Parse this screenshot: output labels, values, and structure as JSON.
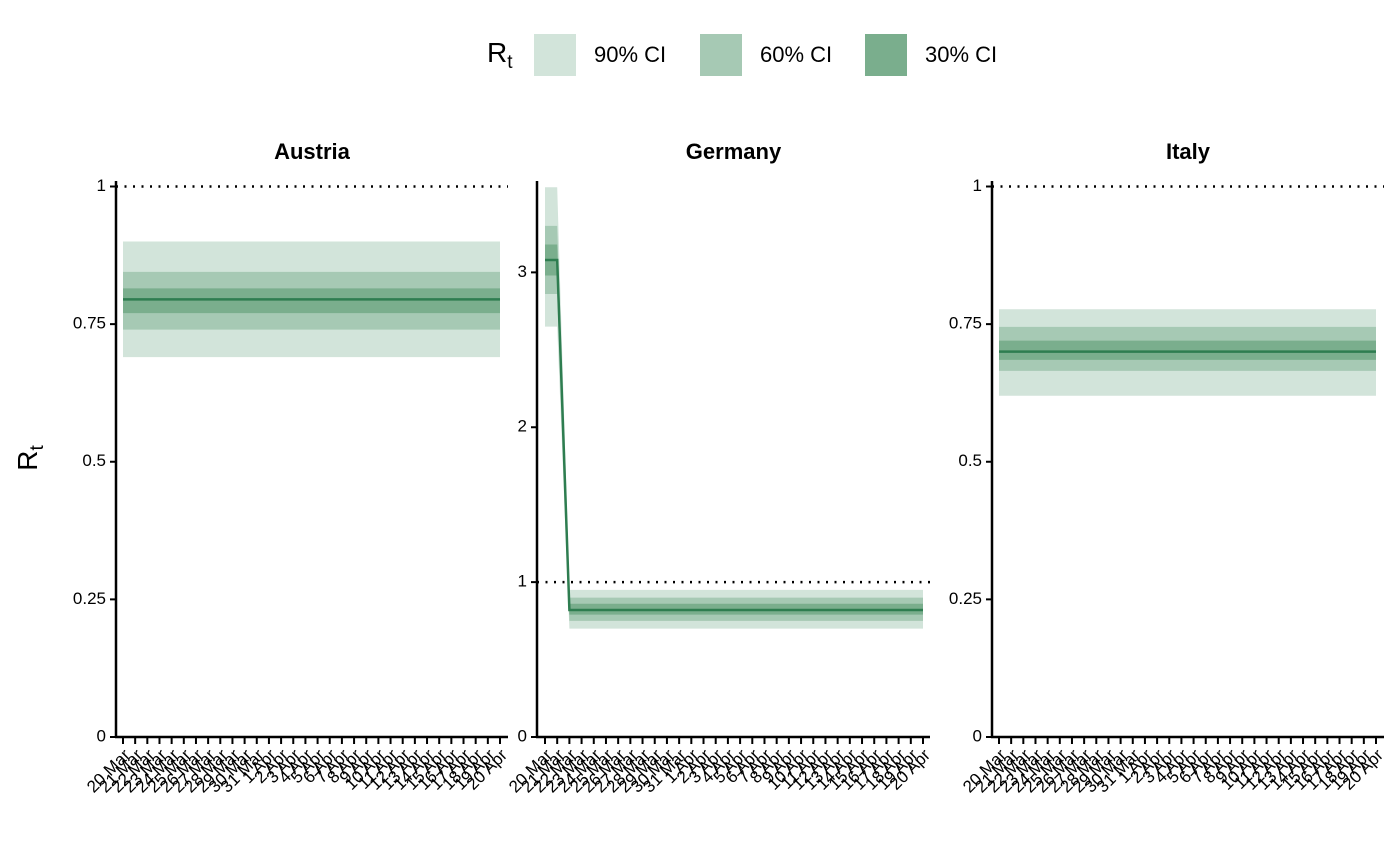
{
  "legend": {
    "title": "R",
    "title_sub": "t",
    "entries": [
      {
        "name": "90% CI",
        "color": "#d2e4da"
      },
      {
        "name": "60% CI",
        "color": "#a6c9b4"
      },
      {
        "name": "30% CI",
        "color": "#7aae8d"
      }
    ]
  },
  "y_label": {
    "main": "R",
    "sub": "t"
  },
  "chart_data": [
    {
      "type": "line",
      "title": "Austria",
      "line_color": "#2e7d50",
      "hline": 1,
      "categories": [
        "20 Mar",
        "21 Mar",
        "22 Mar",
        "23 Mar",
        "24 Mar",
        "25 Mar",
        "26 Mar",
        "27 Mar",
        "28 Mar",
        "29 Mar",
        "30 Mar",
        "31 Mar",
        "1 Apr",
        "2 Apr",
        "3 Apr",
        "4 Apr",
        "5 Apr",
        "6 Apr",
        "7 Apr",
        "8 Apr",
        "9 Apr",
        "10 Apr",
        "11 Apr",
        "12 Apr",
        "13 Apr",
        "14 Apr",
        "15 Apr",
        "16 Apr",
        "17 Apr",
        "18 Apr",
        "19 Apr",
        "20 Apr"
      ],
      "values": [
        0.795,
        0.795,
        0.795,
        0.795,
        0.795,
        0.795,
        0.795,
        0.795,
        0.795,
        0.795,
        0.795,
        0.795,
        0.795,
        0.795,
        0.795,
        0.795,
        0.795,
        0.795,
        0.795,
        0.795,
        0.795,
        0.795,
        0.795,
        0.795,
        0.795,
        0.795,
        0.795,
        0.795,
        0.795,
        0.795,
        0.795,
        0.795
      ],
      "bands": [
        {
          "lower": [
            0.69,
            0.69,
            0.69,
            0.69,
            0.69,
            0.69,
            0.69,
            0.69,
            0.69,
            0.69,
            0.69,
            0.69,
            0.69,
            0.69,
            0.69,
            0.69,
            0.69,
            0.69,
            0.69,
            0.69,
            0.69,
            0.69,
            0.69,
            0.69,
            0.69,
            0.69,
            0.69,
            0.69,
            0.69,
            0.69,
            0.69,
            0.69
          ],
          "upper": [
            0.9,
            0.9,
            0.9,
            0.9,
            0.9,
            0.9,
            0.9,
            0.9,
            0.9,
            0.9,
            0.9,
            0.9,
            0.9,
            0.9,
            0.9,
            0.9,
            0.9,
            0.9,
            0.9,
            0.9,
            0.9,
            0.9,
            0.9,
            0.9,
            0.9,
            0.9,
            0.9,
            0.9,
            0.9,
            0.9,
            0.9,
            0.9
          ]
        },
        {
          "lower": [
            0.74,
            0.74,
            0.74,
            0.74,
            0.74,
            0.74,
            0.74,
            0.74,
            0.74,
            0.74,
            0.74,
            0.74,
            0.74,
            0.74,
            0.74,
            0.74,
            0.74,
            0.74,
            0.74,
            0.74,
            0.74,
            0.74,
            0.74,
            0.74,
            0.74,
            0.74,
            0.74,
            0.74,
            0.74,
            0.74,
            0.74,
            0.74
          ],
          "upper": [
            0.845,
            0.845,
            0.845,
            0.845,
            0.845,
            0.845,
            0.845,
            0.845,
            0.845,
            0.845,
            0.845,
            0.845,
            0.845,
            0.845,
            0.845,
            0.845,
            0.845,
            0.845,
            0.845,
            0.845,
            0.845,
            0.845,
            0.845,
            0.845,
            0.845,
            0.845,
            0.845,
            0.845,
            0.845,
            0.845,
            0.845,
            0.845
          ]
        },
        {
          "lower": [
            0.77,
            0.77,
            0.77,
            0.77,
            0.77,
            0.77,
            0.77,
            0.77,
            0.77,
            0.77,
            0.77,
            0.77,
            0.77,
            0.77,
            0.77,
            0.77,
            0.77,
            0.77,
            0.77,
            0.77,
            0.77,
            0.77,
            0.77,
            0.77,
            0.77,
            0.77,
            0.77,
            0.77,
            0.77,
            0.77,
            0.77,
            0.77
          ],
          "upper": [
            0.815,
            0.815,
            0.815,
            0.815,
            0.815,
            0.815,
            0.815,
            0.815,
            0.815,
            0.815,
            0.815,
            0.815,
            0.815,
            0.815,
            0.815,
            0.815,
            0.815,
            0.815,
            0.815,
            0.815,
            0.815,
            0.815,
            0.815,
            0.815,
            0.815,
            0.815,
            0.815,
            0.815,
            0.815,
            0.815,
            0.815,
            0.815
          ]
        }
      ],
      "ylim": [
        0,
        1.01
      ],
      "yticks": [
        0,
        0.25,
        0.5,
        0.75,
        1
      ]
    },
    {
      "type": "line",
      "title": "Germany",
      "line_color": "#2e7d50",
      "hline": 1,
      "categories": [
        "20 Mar",
        "21 Mar",
        "22 Mar",
        "23 Mar",
        "24 Mar",
        "25 Mar",
        "26 Mar",
        "27 Mar",
        "28 Mar",
        "29 Mar",
        "30 Mar",
        "31 Mar",
        "1 Apr",
        "2 Apr",
        "3 Apr",
        "4 Apr",
        "5 Apr",
        "6 Apr",
        "7 Apr",
        "8 Apr",
        "9 Apr",
        "10 Apr",
        "11 Apr",
        "12 Apr",
        "13 Apr",
        "14 Apr",
        "15 Apr",
        "16 Apr",
        "17 Apr",
        "18 Apr",
        "19 Apr",
        "20 Apr"
      ],
      "values": [
        3.08,
        3.08,
        0.82,
        0.82,
        0.82,
        0.82,
        0.82,
        0.82,
        0.82,
        0.82,
        0.82,
        0.82,
        0.82,
        0.82,
        0.82,
        0.82,
        0.82,
        0.82,
        0.82,
        0.82,
        0.82,
        0.82,
        0.82,
        0.82,
        0.82,
        0.82,
        0.82,
        0.82,
        0.82,
        0.82,
        0.82,
        0.82
      ],
      "bands": [
        {
          "lower": [
            2.65,
            2.65,
            0.7,
            0.7,
            0.7,
            0.7,
            0.7,
            0.7,
            0.7,
            0.7,
            0.7,
            0.7,
            0.7,
            0.7,
            0.7,
            0.7,
            0.7,
            0.7,
            0.7,
            0.7,
            0.7,
            0.7,
            0.7,
            0.7,
            0.7,
            0.7,
            0.7,
            0.7,
            0.7,
            0.7,
            0.7,
            0.7
          ],
          "upper": [
            3.55,
            3.55,
            0.95,
            0.95,
            0.95,
            0.95,
            0.95,
            0.95,
            0.95,
            0.95,
            0.95,
            0.95,
            0.95,
            0.95,
            0.95,
            0.95,
            0.95,
            0.95,
            0.95,
            0.95,
            0.95,
            0.95,
            0.95,
            0.95,
            0.95,
            0.95,
            0.95,
            0.95,
            0.95,
            0.95,
            0.95,
            0.95
          ]
        },
        {
          "lower": [
            2.86,
            2.86,
            0.75,
            0.75,
            0.75,
            0.75,
            0.75,
            0.75,
            0.75,
            0.75,
            0.75,
            0.75,
            0.75,
            0.75,
            0.75,
            0.75,
            0.75,
            0.75,
            0.75,
            0.75,
            0.75,
            0.75,
            0.75,
            0.75,
            0.75,
            0.75,
            0.75,
            0.75,
            0.75,
            0.75,
            0.75,
            0.75
          ],
          "upper": [
            3.3,
            3.3,
            0.9,
            0.9,
            0.9,
            0.9,
            0.9,
            0.9,
            0.9,
            0.9,
            0.9,
            0.9,
            0.9,
            0.9,
            0.9,
            0.9,
            0.9,
            0.9,
            0.9,
            0.9,
            0.9,
            0.9,
            0.9,
            0.9,
            0.9,
            0.9,
            0.9,
            0.9,
            0.9,
            0.9,
            0.9,
            0.9
          ]
        },
        {
          "lower": [
            2.98,
            2.98,
            0.79,
            0.79,
            0.79,
            0.79,
            0.79,
            0.79,
            0.79,
            0.79,
            0.79,
            0.79,
            0.79,
            0.79,
            0.79,
            0.79,
            0.79,
            0.79,
            0.79,
            0.79,
            0.79,
            0.79,
            0.79,
            0.79,
            0.79,
            0.79,
            0.79,
            0.79,
            0.79,
            0.79,
            0.79,
            0.79
          ],
          "upper": [
            3.18,
            3.18,
            0.86,
            0.86,
            0.86,
            0.86,
            0.86,
            0.86,
            0.86,
            0.86,
            0.86,
            0.86,
            0.86,
            0.86,
            0.86,
            0.86,
            0.86,
            0.86,
            0.86,
            0.86,
            0.86,
            0.86,
            0.86,
            0.86,
            0.86,
            0.86,
            0.86,
            0.86,
            0.86,
            0.86,
            0.86,
            0.86
          ]
        }
      ],
      "ylim": [
        0,
        3.59
      ],
      "yticks": [
        0,
        1,
        2,
        3
      ]
    },
    {
      "type": "line",
      "title": "Italy",
      "line_color": "#2e7d50",
      "hline": 1,
      "categories": [
        "20 Mar",
        "21 Mar",
        "22 Mar",
        "23 Mar",
        "24 Mar",
        "25 Mar",
        "26 Mar",
        "27 Mar",
        "28 Mar",
        "29 Mar",
        "30 Mar",
        "31 Mar",
        "1 Apr",
        "2 Apr",
        "3 Apr",
        "4 Apr",
        "5 Apr",
        "6 Apr",
        "7 Apr",
        "8 Apr",
        "9 Apr",
        "10 Apr",
        "11 Apr",
        "12 Apr",
        "13 Apr",
        "14 Apr",
        "15 Apr",
        "16 Apr",
        "17 Apr",
        "18 Apr",
        "19 Apr",
        "20 Apr"
      ],
      "values": [
        0.7,
        0.7,
        0.7,
        0.7,
        0.7,
        0.7,
        0.7,
        0.7,
        0.7,
        0.7,
        0.7,
        0.7,
        0.7,
        0.7,
        0.7,
        0.7,
        0.7,
        0.7,
        0.7,
        0.7,
        0.7,
        0.7,
        0.7,
        0.7,
        0.7,
        0.7,
        0.7,
        0.7,
        0.7,
        0.7,
        0.7,
        0.7
      ],
      "bands": [
        {
          "lower": [
            0.62,
            0.62,
            0.62,
            0.62,
            0.62,
            0.62,
            0.62,
            0.62,
            0.62,
            0.62,
            0.62,
            0.62,
            0.62,
            0.62,
            0.62,
            0.62,
            0.62,
            0.62,
            0.62,
            0.62,
            0.62,
            0.62,
            0.62,
            0.62,
            0.62,
            0.62,
            0.62,
            0.62,
            0.62,
            0.62,
            0.62,
            0.62
          ],
          "upper": [
            0.777,
            0.777,
            0.777,
            0.777,
            0.777,
            0.777,
            0.777,
            0.777,
            0.777,
            0.777,
            0.777,
            0.777,
            0.777,
            0.777,
            0.777,
            0.777,
            0.777,
            0.777,
            0.777,
            0.777,
            0.777,
            0.777,
            0.777,
            0.777,
            0.777,
            0.777,
            0.777,
            0.777,
            0.777,
            0.777,
            0.777,
            0.777
          ]
        },
        {
          "lower": [
            0.665,
            0.665,
            0.665,
            0.665,
            0.665,
            0.665,
            0.665,
            0.665,
            0.665,
            0.665,
            0.665,
            0.665,
            0.665,
            0.665,
            0.665,
            0.665,
            0.665,
            0.665,
            0.665,
            0.665,
            0.665,
            0.665,
            0.665,
            0.665,
            0.665,
            0.665,
            0.665,
            0.665,
            0.665,
            0.665,
            0.665,
            0.665
          ],
          "upper": [
            0.745,
            0.745,
            0.745,
            0.745,
            0.745,
            0.745,
            0.745,
            0.745,
            0.745,
            0.745,
            0.745,
            0.745,
            0.745,
            0.745,
            0.745,
            0.745,
            0.745,
            0.745,
            0.745,
            0.745,
            0.745,
            0.745,
            0.745,
            0.745,
            0.745,
            0.745,
            0.745,
            0.745,
            0.745,
            0.745,
            0.745,
            0.745
          ]
        },
        {
          "lower": [
            0.685,
            0.685,
            0.685,
            0.685,
            0.685,
            0.685,
            0.685,
            0.685,
            0.685,
            0.685,
            0.685,
            0.685,
            0.685,
            0.685,
            0.685,
            0.685,
            0.685,
            0.685,
            0.685,
            0.685,
            0.685,
            0.685,
            0.685,
            0.685,
            0.685,
            0.685,
            0.685,
            0.685,
            0.685,
            0.685,
            0.685,
            0.685
          ],
          "upper": [
            0.72,
            0.72,
            0.72,
            0.72,
            0.72,
            0.72,
            0.72,
            0.72,
            0.72,
            0.72,
            0.72,
            0.72,
            0.72,
            0.72,
            0.72,
            0.72,
            0.72,
            0.72,
            0.72,
            0.72,
            0.72,
            0.72,
            0.72,
            0.72,
            0.72,
            0.72,
            0.72,
            0.72,
            0.72,
            0.72,
            0.72,
            0.72
          ]
        }
      ],
      "ylim": [
        0,
        1.01
      ],
      "yticks": [
        0,
        0.25,
        0.5,
        0.75,
        1
      ]
    }
  ]
}
